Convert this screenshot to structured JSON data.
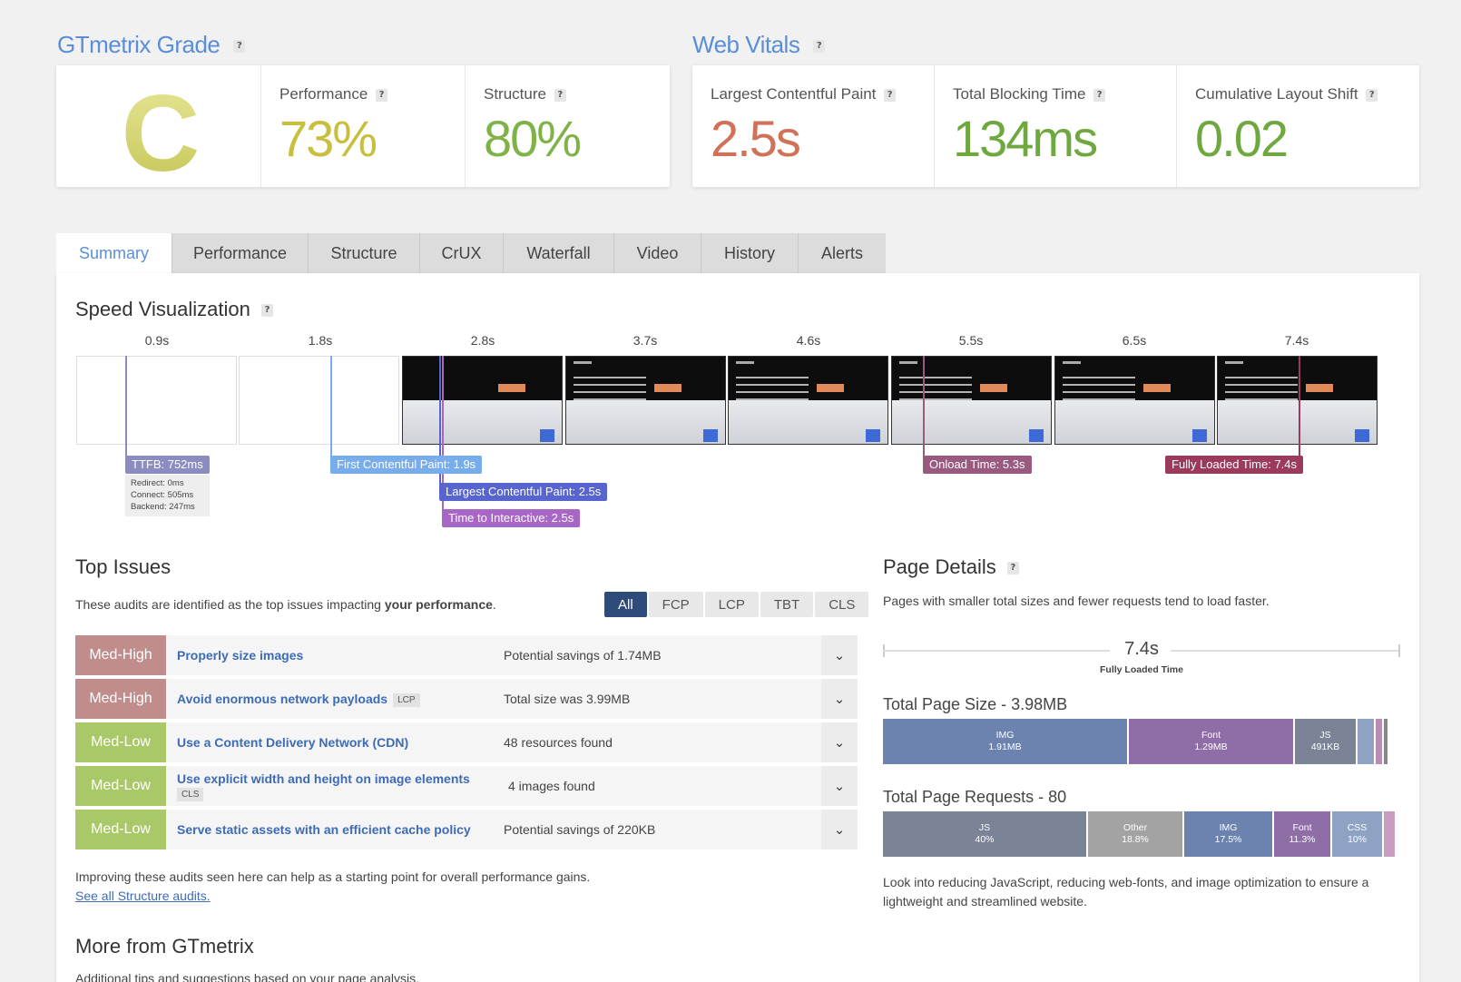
{
  "grade": {
    "title": "GTmetrix Grade",
    "help": "?",
    "letter": "C",
    "performance_label": "Performance",
    "performance_value": "73%",
    "structure_label": "Structure",
    "structure_value": "80%"
  },
  "vitals": {
    "title": "Web Vitals",
    "help": "?",
    "lcp_label": "Largest Contentful Paint",
    "lcp_value": "2.5s",
    "tbt_label": "Total Blocking Time",
    "tbt_value": "134ms",
    "cls_label": "Cumulative Layout Shift",
    "cls_value": "0.02"
  },
  "tabs": [
    "Summary",
    "Performance",
    "Structure",
    "CrUX",
    "Waterfall",
    "Video",
    "History",
    "Alerts"
  ],
  "speed": {
    "title": "Speed Visualization",
    "help": "?",
    "ticks": [
      "0.9s",
      "1.8s",
      "2.8s",
      "3.7s",
      "4.6s",
      "5.5s",
      "6.5s",
      "7.4s"
    ],
    "frame_text": "Strategisches Webdesign mit Fokus auf Barrierefreiheit",
    "ttfb": "TTFB: 752ms",
    "ttfb_detail": [
      "Redirect: 0ms",
      "Connect: 505ms",
      "Backend: 247ms"
    ],
    "fcp": "First Contentful Paint: 1.9s",
    "lcp": "Largest Contentful Paint: 2.5s",
    "tti": "Time to Interactive: 2.5s",
    "onload": "Onload Time: 5.3s",
    "fully_loaded": "Fully Loaded Time: 7.4s"
  },
  "issues": {
    "title": "Top Issues",
    "intro_prefix": "These audits are identified as the top issues impacting ",
    "intro_bold": "your performance",
    "intro_suffix": ".",
    "filters": [
      "All",
      "FCP",
      "LCP",
      "TBT",
      "CLS"
    ],
    "rows": [
      {
        "severity": "Med-High",
        "title": "Properly size images",
        "tag": "",
        "result": "Potential savings of 1.74MB"
      },
      {
        "severity": "Med-High",
        "title": "Avoid enormous network payloads",
        "tag": "LCP",
        "result": "Total size was 3.99MB"
      },
      {
        "severity": "Med-Low",
        "title": "Use a Content Delivery Network (CDN)",
        "tag": "",
        "result": "48 resources found"
      },
      {
        "severity": "Med-Low",
        "title": "Use explicit width and height on image elements",
        "tag": "CLS",
        "result": "4 images found"
      },
      {
        "severity": "Med-Low",
        "title": "Serve static assets with an efficient cache policy",
        "tag": "",
        "result": "Potential savings of 220KB"
      }
    ],
    "footer": "Improving these audits seen here can help as a starting point for overall performance gains.",
    "link": "See all Structure audits."
  },
  "details": {
    "title": "Page Details",
    "help": "?",
    "intro": "Pages with smaller total sizes and fewer requests tend to load faster.",
    "loaded_value": "7.4s",
    "loaded_label": "Fully Loaded Time",
    "size_title": "Total Page Size - 3.98MB",
    "size_bars": [
      {
        "name": "IMG",
        "value": "1.91MB",
        "fraction": 0.48,
        "color": "#6c83b0"
      },
      {
        "name": "Font",
        "value": "1.29MB",
        "fraction": 0.324,
        "color": "#8f6ea7"
      },
      {
        "name": "JS",
        "value": "491KB",
        "fraction": 0.123,
        "color": "#7a8496"
      },
      {
        "name": "",
        "value": "",
        "fraction": 0.036,
        "color": "#8ea2c4"
      },
      {
        "name": "",
        "value": "",
        "fraction": 0.016,
        "color": "#b98db3"
      },
      {
        "name": "",
        "value": "",
        "fraction": 0.011,
        "color": "#888"
      }
    ],
    "requests_title": "Total Page Requests - 80",
    "request_bars": [
      {
        "name": "JS",
        "value": "40%",
        "fraction": 0.4,
        "color": "#7a8496"
      },
      {
        "name": "Other",
        "value": "18.8%",
        "fraction": 0.188,
        "color": "#a3a3a3"
      },
      {
        "name": "IMG",
        "value": "17.5%",
        "fraction": 0.175,
        "color": "#6c83b0"
      },
      {
        "name": "Font",
        "value": "11.3%",
        "fraction": 0.113,
        "color": "#8f6ea7"
      },
      {
        "name": "CSS",
        "value": "10%",
        "fraction": 0.1,
        "color": "#8ea2c4"
      },
      {
        "name": "",
        "value": "",
        "fraction": 0.024,
        "color": "#c99cc0"
      }
    ],
    "footer": "Look into reducing JavaScript, reducing web-fonts, and image optimization to ensure a lightweight and streamlined website."
  },
  "more": {
    "title": "More from GTmetrix",
    "intro": "Additional tips and suggestions based on your page analysis."
  },
  "colors": {
    "accent": "#5a8ed8",
    "perf": "#c6c040",
    "good": "#7fb347",
    "lcp": "#d07158",
    "ttfb": "#8b8cbf",
    "fcp": "#78acea",
    "lcp_marker": "#5865cf",
    "tti": "#a866c7",
    "onload": "#9a5a80",
    "fully": "#9c3a5e"
  }
}
